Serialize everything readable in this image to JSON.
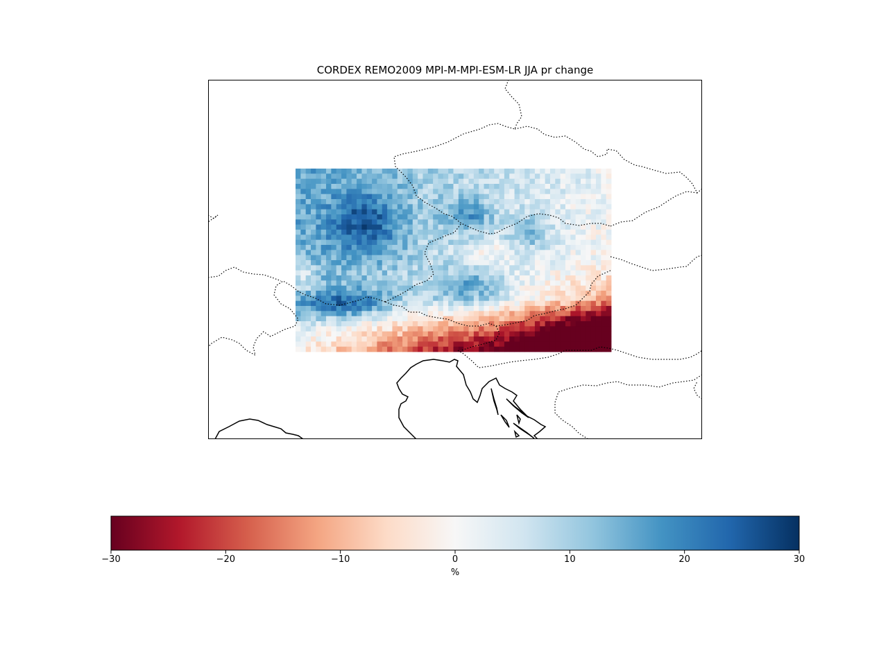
{
  "title": "CORDEX REMO2009 MPI-M-MPI-ESM-LR JJA pr change",
  "colorbar": {
    "label": "%",
    "ticks": [
      {
        "value": -30,
        "label": "−30"
      },
      {
        "value": -20,
        "label": "−20"
      },
      {
        "value": -10,
        "label": "−10"
      },
      {
        "value": 0,
        "label": "0"
      },
      {
        "value": 10,
        "label": "10"
      },
      {
        "value": 20,
        "label": "20"
      },
      {
        "value": 30,
        "label": "30"
      }
    ],
    "vmin": -30,
    "vmax": 30,
    "colormap": "RdBu",
    "colors": [
      "#67001f",
      "#b2182b",
      "#d6604d",
      "#f4a582",
      "#fddbc7",
      "#f7f7f7",
      "#d1e5f0",
      "#92c5de",
      "#4393c3",
      "#2166ac",
      "#053061"
    ]
  },
  "map": {
    "variable": "pr",
    "season": "JJA",
    "units": "%",
    "coastline_style": "solid",
    "border_style": "dotted",
    "grid": {
      "rows": 36,
      "cols": 62
    }
  }
}
